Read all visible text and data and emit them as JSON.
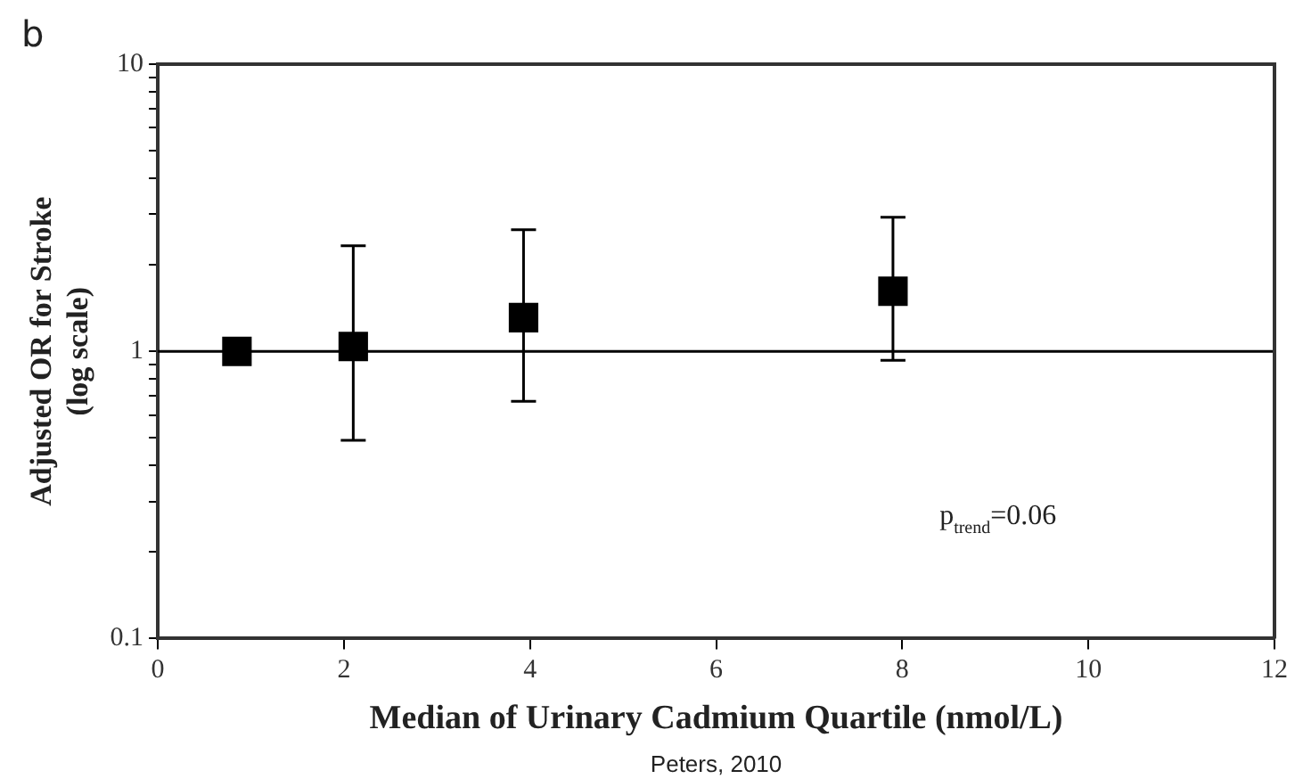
{
  "chart_data": {
    "type": "scatter",
    "xlabel": "Median of Urinary Cadmium Quartile (nmol/L)",
    "ylabel": "Adjusted OR for Stroke\n(log scale)",
    "annotations": [
      "b",
      "p$_{trend}$=0.06",
      "Peters, 2010"
    ],
    "x": [
      0.85,
      2.1,
      3.93,
      7.9
    ],
    "series": [
      {
        "color": "#000000",
        "values": [
          1.0,
          1.04,
          1.31,
          1.62
        ],
        "errors": [
          null,
          [
            0.49,
            2.33
          ],
          [
            0.67,
            2.65
          ],
          [
            0.93,
            2.93
          ]
        ]
      }
    ],
    "log": "y",
    "marker": "square",
    "grid": false,
    "legend": false,
    "xlim": [
      0,
      12
    ],
    "xticks": [
      0,
      2,
      4,
      6,
      8,
      10,
      12
    ],
    "ylim": [
      0.1,
      10
    ],
    "yticks": [
      0.1,
      {
        "value": 0.2,
        "label": null
      },
      {
        "value": 0.3,
        "label": null
      },
      {
        "value": 0.4,
        "label": null
      },
      {
        "value": 0.5,
        "label": null
      },
      {
        "value": 0.6,
        "label": null
      },
      {
        "value": 0.7,
        "label": null
      },
      {
        "value": 0.8,
        "label": null
      },
      {
        "value": 0.9,
        "label": null
      },
      1,
      {
        "value": 2,
        "label": null
      },
      {
        "value": 3,
        "label": null
      },
      {
        "value": 4,
        "label": null
      },
      {
        "value": 5,
        "label": null
      },
      {
        "value": 6,
        "label": null
      },
      {
        "value": 7,
        "label": null
      },
      {
        "value": 8,
        "label": null
      },
      {
        "value": 9,
        "label": null
      },
      10
    ],
    "ref_lines": [
      {
        "axis": "y",
        "value": 1,
        "color": "#000000"
      }
    ]
  }
}
